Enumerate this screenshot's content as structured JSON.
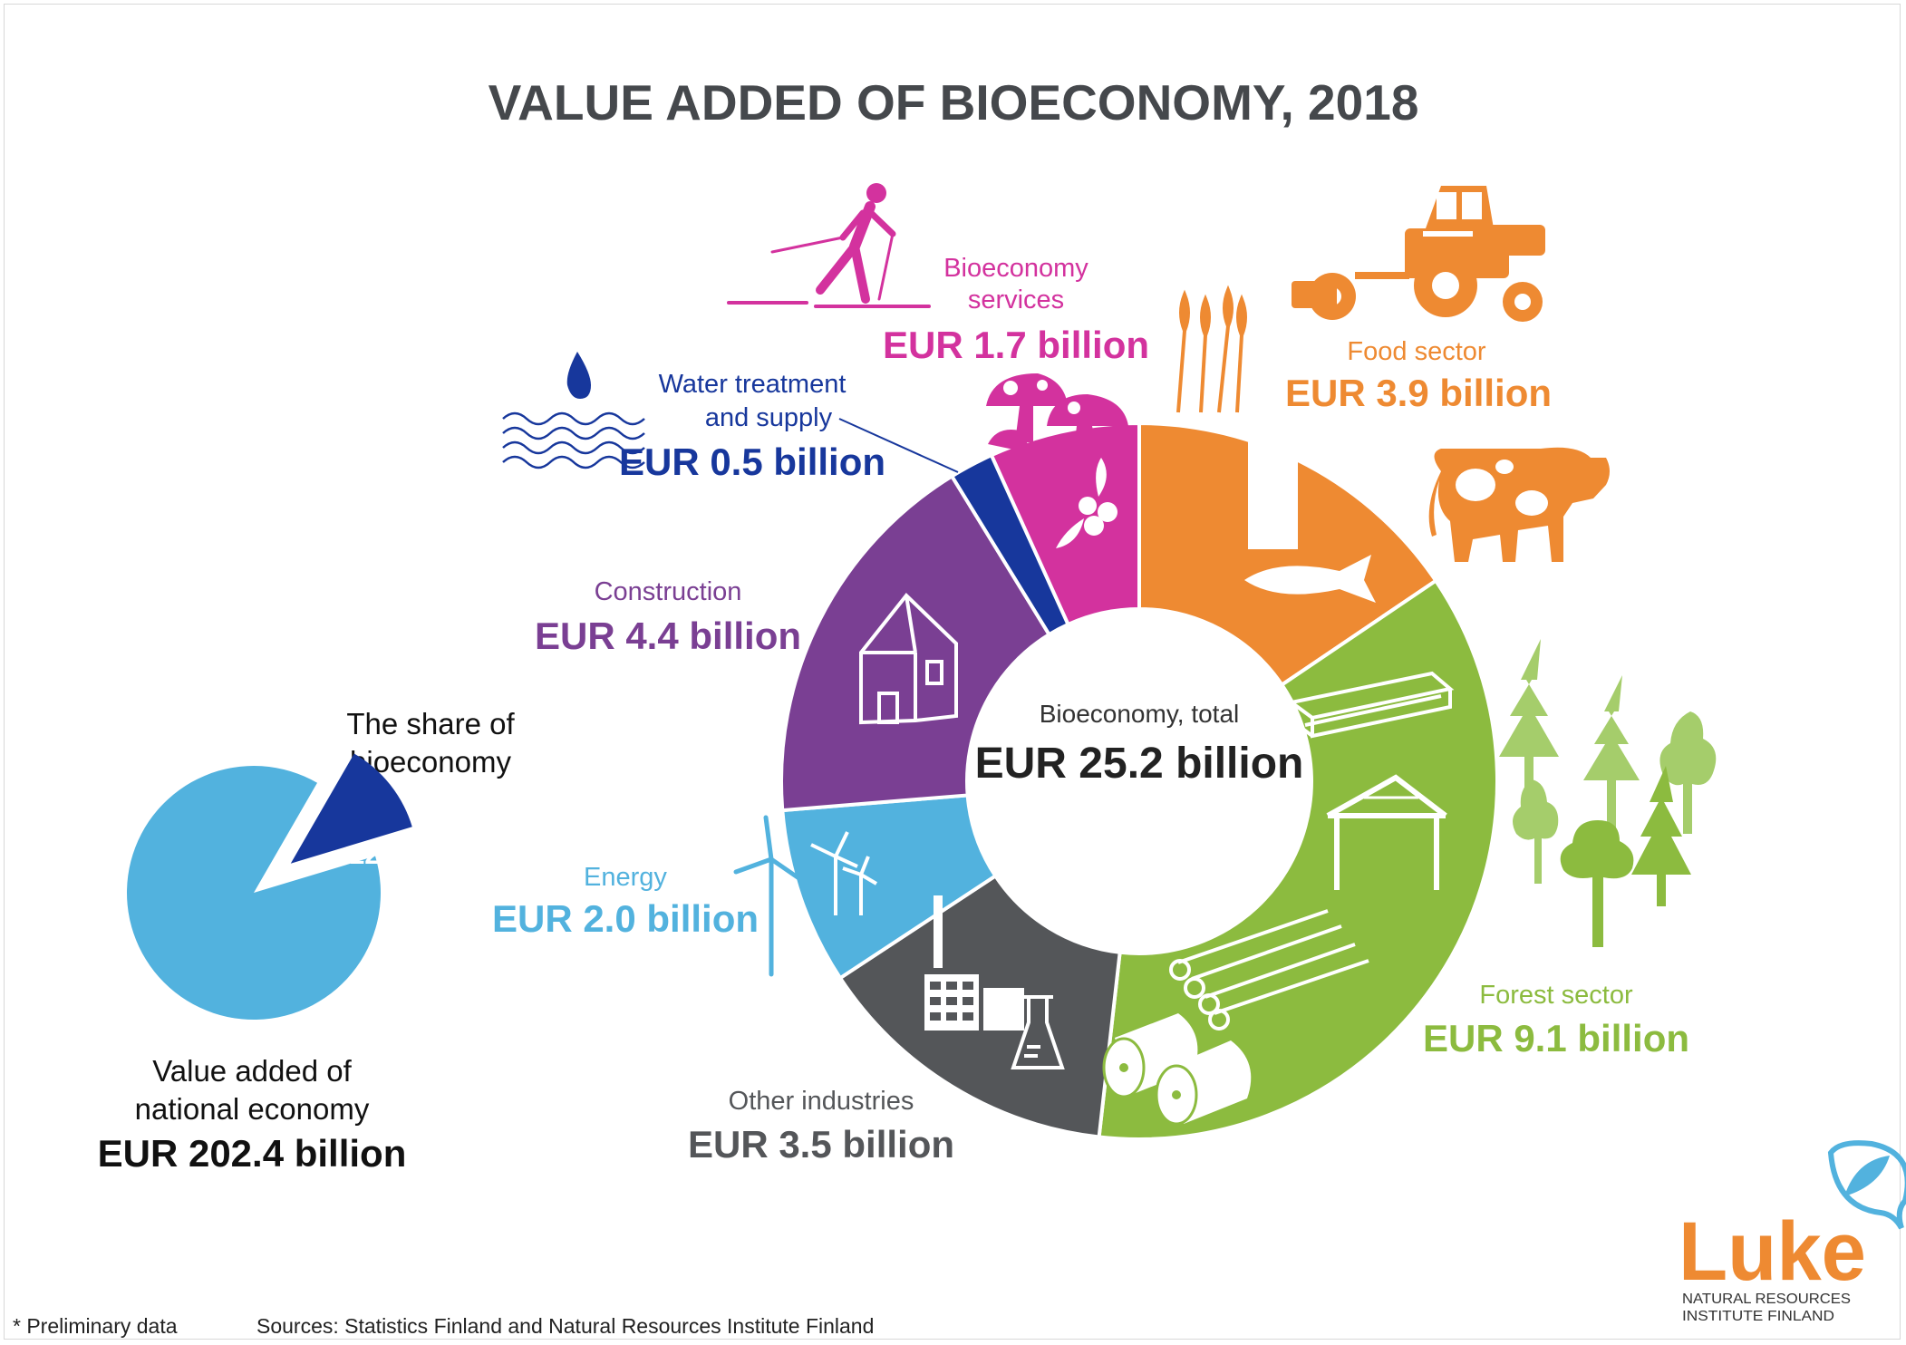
{
  "title": "VALUE ADDED OF BIOECONOMY, 2018",
  "center": {
    "label": "Bioeconomy, total",
    "value": "EUR 25.2 billion"
  },
  "share": {
    "title_line1": "The share of",
    "title_line2": "bioeconomy",
    "percent_label": "12%",
    "base_line1": "Value added of",
    "base_line2": "national economy",
    "base_value": "EUR 202.4 billion"
  },
  "footer": {
    "note": "* Preliminary data",
    "sources": "Sources: Statistics Finland and Natural Resources Institute Finland"
  },
  "logo": {
    "name": "Luke",
    "line1": "NATURAL RESOURCES",
    "line2": "INSTITUTE FINLAND"
  },
  "colors": {
    "food": "#ee8a32",
    "forest": "#8cbb3f",
    "other": "#545659",
    "energy": "#52b2de",
    "construction": "#7a3f93",
    "water": "#17379c",
    "services": "#d3329e",
    "title": "#45484c"
  },
  "icons": [
    "skier-icon",
    "tractor-icon",
    "wheat-icon",
    "milk-carton-icon",
    "fish-icon",
    "cow-icon",
    "mushroom-icon",
    "berries-icon",
    "water-drop-icon",
    "waves-icon",
    "house-icon",
    "wind-turbine-icon",
    "factory-icon",
    "flask-icon",
    "lumber-icon",
    "building-frame-icon",
    "logs-icon",
    "paper-roll-icon",
    "tree-icon"
  ],
  "chart_data": [
    {
      "type": "pie",
      "title": "VALUE ADDED OF BIOECONOMY, 2018",
      "total": 25.2,
      "unit": "EUR billion",
      "categories": [
        "Food sector",
        "Forest sector",
        "Other industries",
        "Energy",
        "Construction",
        "Water treatment and supply",
        "Bioeconomy services"
      ],
      "values": [
        3.9,
        9.1,
        3.5,
        2.0,
        4.4,
        0.5,
        1.7
      ],
      "value_labels": [
        "EUR 3.9 billion",
        "EUR 9.1 billion",
        "EUR 3.5 billion",
        "EUR 2.0 billion",
        "EUR 4.4 billion",
        "EUR 0.5 billion",
        "EUR 1.7 billion"
      ],
      "label_lines": [
        [
          "Food sector"
        ],
        [
          "Forest sector"
        ],
        [
          "Other industries"
        ],
        [
          "Energy"
        ],
        [
          "Construction"
        ],
        [
          "Water treatment",
          "and supply"
        ],
        [
          "Bioeconomy",
          "services"
        ]
      ],
      "colors": [
        "#ee8a32",
        "#8cbb3f",
        "#545659",
        "#52b2de",
        "#7a3f93",
        "#17379c",
        "#d3329e"
      ]
    },
    {
      "type": "pie",
      "categories": [
        "Bioeconomy",
        "Other national economy"
      ],
      "values": [
        12,
        88
      ],
      "unit": "%",
      "total": 202.4,
      "colors": [
        "#17379c",
        "#52b2de"
      ]
    }
  ]
}
